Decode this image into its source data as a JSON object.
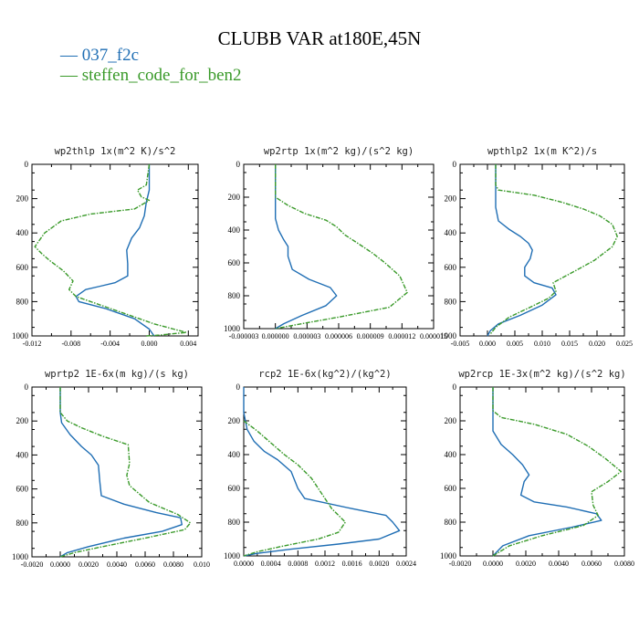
{
  "title": "CLUBB VAR at180E,45N",
  "legend": [
    {
      "label": "— 037_f2c",
      "color": "#1f6eb4"
    },
    {
      "label": "— steffen_code_for_ben2",
      "color": "#3a9a2a"
    }
  ],
  "colors": {
    "series1": "#1f6eb4",
    "series2": "#3a9a2a"
  },
  "chart_data": [
    {
      "type": "line",
      "title": "wp2thlp   1x(m^2 K)/s^2",
      "y_axis": {
        "range": [
          1000,
          0
        ],
        "ticks": [
          "0",
          "200",
          "400",
          "600",
          "800",
          "1000"
        ]
      },
      "x_axis": {
        "range": [
          -0.012,
          0.005
        ],
        "ticks": [
          -0.012,
          -0.008,
          -0.004,
          0.0,
          0.004
        ],
        "tick_labels": [
          "-0.012",
          "-0.008",
          "-0.004",
          "0.000",
          "0.004"
        ]
      },
      "series": [
        {
          "name": "037_f2c",
          "x": [
            0.0,
            0.0,
            -0.0003,
            -0.0005,
            -0.001,
            -0.0018,
            -0.0023,
            -0.0022,
            -0.0022,
            -0.0035,
            -0.005,
            -0.0065,
            -0.0075,
            -0.0072,
            -0.0045,
            -0.0015,
            0.0,
            0.0005
          ],
          "y": [
            0,
            150,
            220,
            300,
            370,
            430,
            500,
            580,
            650,
            690,
            710,
            730,
            770,
            800,
            840,
            900,
            960,
            1000
          ]
        },
        {
          "name": "steffen_code_for_ben2",
          "x": [
            0.0,
            -0.0003,
            -0.0012,
            -0.0008,
            0.0,
            -0.0015,
            -0.006,
            -0.009,
            -0.0107,
            -0.0117,
            -0.011,
            -0.0102,
            -0.0088,
            -0.0078,
            -0.0082,
            -0.0075,
            -0.0045,
            -0.002,
            0.0005,
            0.0025,
            0.0038,
            0.001,
            -0.0003
          ],
          "y": [
            0,
            120,
            150,
            190,
            210,
            260,
            290,
            330,
            400,
            480,
            520,
            560,
            620,
            680,
            730,
            770,
            830,
            880,
            930,
            960,
            980,
            995,
            1000
          ]
        }
      ]
    },
    {
      "type": "line",
      "title": "wp2rtp   1x(m^2 kg)/(s^2 kg)",
      "y_axis": {
        "range": [
          1000,
          0
        ],
        "ticks": [
          "0",
          "200",
          "400",
          "600",
          "800",
          "1000"
        ]
      },
      "x_axis": {
        "range": [
          -3e-06,
          1.5e-05
        ],
        "ticks": [
          -3e-06,
          0.0,
          3e-06,
          6e-06,
          9e-06,
          1.2e-05,
          1.5e-05
        ],
        "tick_labels": [
          "-0.000003",
          "0.000000",
          "0.000003",
          "0.000006",
          "0.000009",
          "0.000012",
          "0.000015"
        ]
      },
      "series": [
        {
          "name": "037_f2c",
          "x": [
            0.0,
            0.0,
            0.0,
            0.0,
            3e-07,
            8e-07,
            1.2e-06,
            1.2e-06,
            1.6e-06,
            3.2e-06,
            5.2e-06,
            5.8e-06,
            4.8e-06,
            2.5e-06,
            8e-07,
            0.0
          ],
          "y": [
            0,
            150,
            250,
            330,
            400,
            460,
            500,
            560,
            640,
            700,
            750,
            800,
            860,
            920,
            970,
            1000
          ]
        },
        {
          "name": "steffen_code_for_ben2",
          "x": [
            0.0,
            0.0,
            0.0,
            1.2e-06,
            2.8e-06,
            4.8e-06,
            5.8e-06,
            6.6e-06,
            7.8e-06,
            9.2e-06,
            1.04e-05,
            1.18e-05,
            1.25e-05,
            1.08e-05,
            6e-06,
            2.5e-06,
            0.0
          ],
          "y": [
            0,
            150,
            200,
            250,
            300,
            340,
            380,
            430,
            480,
            540,
            600,
            680,
            780,
            870,
            930,
            970,
            1000
          ]
        }
      ]
    },
    {
      "type": "line",
      "title": "wpthlp2   1x(m K^2)/s",
      "y_axis": {
        "range": [
          1000,
          0
        ],
        "ticks": [
          "0",
          "200",
          "400",
          "600",
          "800",
          "1000"
        ]
      },
      "x_axis": {
        "range": [
          -0.005,
          0.025
        ],
        "ticks": [
          -0.005,
          0.0,
          0.005,
          0.01,
          0.015,
          0.02,
          0.025
        ],
        "tick_labels": [
          "-0.005",
          "0.000",
          "0.005",
          "0.010",
          "0.015",
          "0.020",
          "0.025"
        ]
      },
      "series": [
        {
          "name": "037_f2c",
          "x": [
            0.0015,
            0.0015,
            0.0015,
            0.002,
            0.004,
            0.006,
            0.0075,
            0.0082,
            0.0078,
            0.0068,
            0.0068,
            0.0085,
            0.0118,
            0.0125,
            0.01,
            0.006,
            0.002,
            0.0005,
            0.0
          ],
          "y": [
            0,
            150,
            250,
            330,
            380,
            420,
            460,
            500,
            550,
            600,
            650,
            690,
            720,
            760,
            820,
            880,
            930,
            970,
            1000
          ]
        },
        {
          "name": "steffen_code_for_ben2",
          "x": [
            0.0015,
            0.0015,
            0.002,
            0.0085,
            0.0135,
            0.0175,
            0.0205,
            0.0228,
            0.0237,
            0.0228,
            0.0195,
            0.0155,
            0.012,
            0.0125,
            0.0112,
            0.008,
            0.004,
            0.0015,
            0.0005
          ],
          "y": [
            0,
            120,
            150,
            180,
            220,
            260,
            300,
            350,
            420,
            480,
            560,
            630,
            690,
            740,
            780,
            830,
            890,
            950,
            990
          ]
        }
      ]
    },
    {
      "type": "line",
      "title": "wprtp2   1E-6x(m kg)/(s kg)",
      "y_axis": {
        "range": [
          1000,
          0
        ],
        "ticks": [
          "0",
          "200",
          "400",
          "600",
          "800",
          "1000"
        ]
      },
      "x_axis": {
        "range": [
          -0.002,
          0.01
        ],
        "ticks": [
          -0.002,
          0.0,
          0.002,
          0.004,
          0.006,
          0.008,
          0.01
        ],
        "tick_labels": [
          "-0.0020",
          "0.0000",
          "0.0020",
          "0.0040",
          "0.0060",
          "0.0080",
          "0.010"
        ]
      },
      "series": [
        {
          "name": "037_f2c",
          "x": [
            0.0,
            0.0,
            0.0001,
            0.0007,
            0.0015,
            0.0022,
            0.0027,
            0.0028,
            0.0029,
            0.0045,
            0.0068,
            0.0085,
            0.0086,
            0.0072,
            0.0045,
            0.002,
            0.0005,
            0.0
          ],
          "y": [
            0,
            150,
            210,
            280,
            350,
            400,
            460,
            560,
            640,
            690,
            740,
            770,
            810,
            850,
            890,
            940,
            975,
            1000
          ]
        },
        {
          "name": "steffen_code_for_ben2",
          "x": [
            0.0,
            0.0,
            0.0005,
            0.0015,
            0.003,
            0.0048,
            0.0049,
            0.0047,
            0.0049,
            0.0063,
            0.0083,
            0.0092,
            0.0088,
            0.006,
            0.003,
            0.001,
            0.0
          ],
          "y": [
            0,
            150,
            200,
            240,
            290,
            340,
            450,
            520,
            580,
            680,
            750,
            800,
            840,
            890,
            940,
            975,
            1000
          ]
        }
      ]
    },
    {
      "type": "line",
      "title": "rcp2   1E-6x(kg^2)/(kg^2)",
      "y_axis": {
        "range": [
          1000,
          0
        ],
        "ticks": [
          "0",
          "200",
          "400",
          "600",
          "800",
          "1000"
        ]
      },
      "x_axis": {
        "range": [
          0.0,
          0.0024
        ],
        "ticks": [
          0.0,
          0.0004,
          0.0008,
          0.0012,
          0.0016,
          0.002,
          0.0024
        ],
        "tick_labels": [
          "0.0000",
          "0.0004",
          "0.0008",
          "0.0012",
          "0.0016",
          "0.0020",
          "0.0024"
        ]
      },
      "series": [
        {
          "name": "037_f2c",
          "x": [
            0.0,
            0.0,
            5e-05,
            0.00015,
            0.0003,
            0.0005,
            0.0007,
            0.0008,
            0.0009,
            0.0016,
            0.0021,
            0.0022,
            0.0023,
            0.002,
            0.0014,
            0.0007,
            0.0002,
            0.0
          ],
          "y": [
            0,
            150,
            250,
            320,
            380,
            430,
            500,
            600,
            660,
            720,
            760,
            800,
            850,
            900,
            930,
            960,
            985,
            1000
          ]
        },
        {
          "name": "steffen_code_for_ben2",
          "x": [
            0.0,
            0.0002,
            0.0004,
            0.0006,
            0.0008,
            0.001,
            0.0011,
            0.0012,
            0.0013,
            0.0015,
            0.0014,
            0.0011,
            0.0006,
            0.0002,
            0.0
          ],
          "y": [
            200,
            260,
            330,
            400,
            460,
            540,
            600,
            660,
            720,
            800,
            860,
            900,
            940,
            975,
            1000
          ]
        }
      ]
    },
    {
      "type": "line",
      "title": "wp2rcp   1E-3x(m^2 kg)/(s^2 kg)",
      "y_axis": {
        "range": [
          1000,
          0
        ],
        "ticks": [
          "0",
          "200",
          "400",
          "600",
          "800",
          "1000"
        ]
      },
      "x_axis": {
        "range": [
          -0.002,
          0.008
        ],
        "ticks": [
          -0.002,
          0.0,
          0.002,
          0.004,
          0.006,
          0.008
        ],
        "tick_labels": [
          "-0.0020",
          "0.0000",
          "0.0020",
          "0.0040",
          "0.0060",
          "0.0080"
        ]
      },
      "series": [
        {
          "name": "037_f2c",
          "x": [
            0.0,
            0.0,
            0.0,
            0.0005,
            0.0012,
            0.0018,
            0.0022,
            0.0019,
            0.0017,
            0.0025,
            0.0045,
            0.0063,
            0.0066,
            0.0048,
            0.0022,
            0.0006,
            0.0
          ],
          "y": [
            0,
            150,
            260,
            340,
            400,
            460,
            520,
            560,
            640,
            680,
            710,
            750,
            790,
            830,
            880,
            940,
            1000
          ]
        },
        {
          "name": "steffen_code_for_ben2",
          "x": [
            0.0,
            0.0,
            0.0005,
            0.0025,
            0.0045,
            0.0058,
            0.0068,
            0.0078,
            0.007,
            0.006,
            0.0061,
            0.0064,
            0.0055,
            0.003,
            0.001,
            0.0
          ],
          "y": [
            0,
            140,
            180,
            220,
            280,
            350,
            420,
            500,
            560,
            620,
            700,
            760,
            820,
            880,
            940,
            1000
          ]
        }
      ]
    }
  ]
}
